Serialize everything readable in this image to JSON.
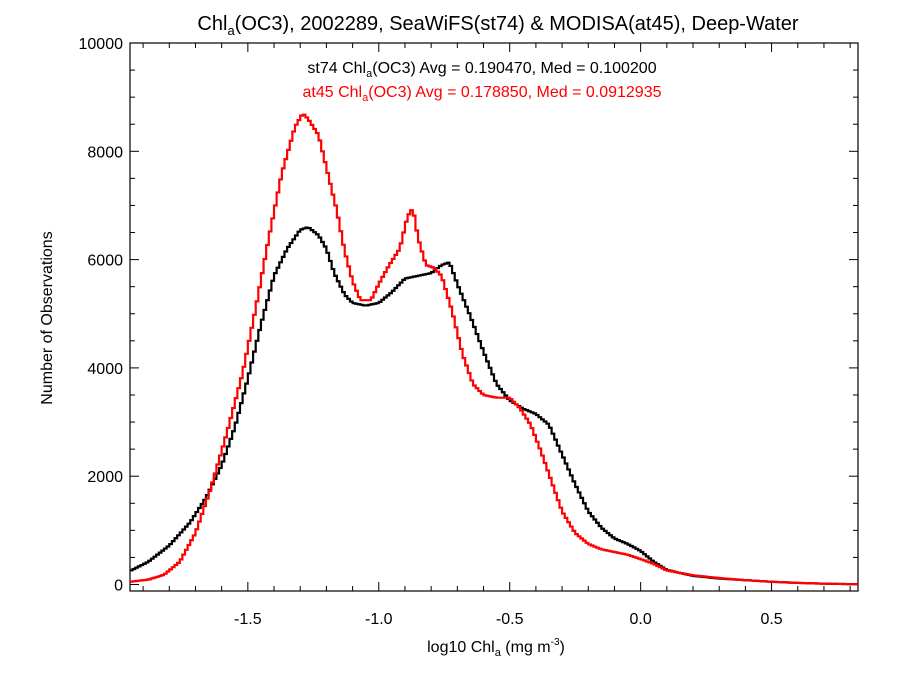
{
  "chart_data": {
    "type": "line",
    "title": {
      "pre": "Chl",
      "sub": "a",
      "post": "(OC3), 2002289, SeaWiFS(st74) & MODISA(at45), Deep-Water"
    },
    "xlabel": {
      "pre": "log10 Chl",
      "sub": "a",
      "mid": " (mg m",
      "sup": "-3",
      "post": ")"
    },
    "ylabel": "Number of Observations",
    "xlim": [
      -1.95,
      0.83
    ],
    "ylim": [
      -120,
      10000
    ],
    "xticks": [
      -1.5,
      -1.0,
      -0.5,
      0.0,
      0.5
    ],
    "xtick_labels": [
      "-1.5",
      "-1.0",
      "-0.5",
      "0.0",
      "0.5"
    ],
    "yticks": [
      0,
      2000,
      4000,
      6000,
      8000,
      10000
    ],
    "ytick_labels": [
      "0",
      "2000",
      "4000",
      "6000",
      "8000",
      "10000"
    ],
    "step_style": "histogram",
    "series": [
      {
        "color": "#000000",
        "annotation": {
          "pre": "st74 Chl",
          "sub": "a",
          "post": "(OC3) Avg = 0.190470, Med = 0.100200"
        },
        "points": [
          [
            -1.95,
            250
          ],
          [
            -1.88,
            420
          ],
          [
            -1.8,
            720
          ],
          [
            -1.72,
            1150
          ],
          [
            -1.66,
            1600
          ],
          [
            -1.6,
            2200
          ],
          [
            -1.55,
            2900
          ],
          [
            -1.5,
            3800
          ],
          [
            -1.45,
            4800
          ],
          [
            -1.4,
            5700
          ],
          [
            -1.35,
            6200
          ],
          [
            -1.3,
            6550
          ],
          [
            -1.27,
            6600
          ],
          [
            -1.23,
            6450
          ],
          [
            -1.2,
            6200
          ],
          [
            -1.17,
            5750
          ],
          [
            -1.13,
            5350
          ],
          [
            -1.1,
            5200
          ],
          [
            -1.05,
            5150
          ],
          [
            -1.0,
            5200
          ],
          [
            -0.95,
            5400
          ],
          [
            -0.9,
            5650
          ],
          [
            -0.85,
            5700
          ],
          [
            -0.8,
            5750
          ],
          [
            -0.76,
            5900
          ],
          [
            -0.73,
            5950
          ],
          [
            -0.7,
            5550
          ],
          [
            -0.65,
            4950
          ],
          [
            -0.6,
            4300
          ],
          [
            -0.55,
            3700
          ],
          [
            -0.5,
            3400
          ],
          [
            -0.45,
            3250
          ],
          [
            -0.4,
            3150
          ],
          [
            -0.35,
            2950
          ],
          [
            -0.3,
            2400
          ],
          [
            -0.25,
            1850
          ],
          [
            -0.2,
            1350
          ],
          [
            -0.15,
            1050
          ],
          [
            -0.1,
            850
          ],
          [
            -0.05,
            750
          ],
          [
            0.0,
            620
          ],
          [
            0.05,
            420
          ],
          [
            0.1,
            270
          ],
          [
            0.2,
            160
          ],
          [
            0.3,
            110
          ],
          [
            0.4,
            80
          ],
          [
            0.5,
            50
          ],
          [
            0.6,
            30
          ],
          [
            0.7,
            15
          ],
          [
            0.83,
            5
          ]
        ]
      },
      {
        "color": "#ff0000",
        "annotation": {
          "pre": "at45 Chl",
          "sub": "a",
          "post": "(OC3) Avg = 0.178850, Med = 0.0912935"
        },
        "points": [
          [
            -1.95,
            50
          ],
          [
            -1.88,
            90
          ],
          [
            -1.82,
            180
          ],
          [
            -1.76,
            420
          ],
          [
            -1.7,
            950
          ],
          [
            -1.64,
            1800
          ],
          [
            -1.58,
            2800
          ],
          [
            -1.52,
            3900
          ],
          [
            -1.47,
            5100
          ],
          [
            -1.42,
            6400
          ],
          [
            -1.37,
            7600
          ],
          [
            -1.32,
            8450
          ],
          [
            -1.29,
            8700
          ],
          [
            -1.27,
            8600
          ],
          [
            -1.23,
            8300
          ],
          [
            -1.2,
            7700
          ],
          [
            -1.16,
            6900
          ],
          [
            -1.13,
            6150
          ],
          [
            -1.1,
            5600
          ],
          [
            -1.07,
            5250
          ],
          [
            -1.03,
            5250
          ],
          [
            -1.0,
            5550
          ],
          [
            -0.96,
            5900
          ],
          [
            -0.92,
            6200
          ],
          [
            -0.89,
            6800
          ],
          [
            -0.87,
            6950
          ],
          [
            -0.85,
            6400
          ],
          [
            -0.82,
            5900
          ],
          [
            -0.79,
            5850
          ],
          [
            -0.76,
            5700
          ],
          [
            -0.72,
            5050
          ],
          [
            -0.68,
            4250
          ],
          [
            -0.64,
            3700
          ],
          [
            -0.6,
            3500
          ],
          [
            -0.55,
            3450
          ],
          [
            -0.5,
            3450
          ],
          [
            -0.46,
            3250
          ],
          [
            -0.42,
            2950
          ],
          [
            -0.38,
            2450
          ],
          [
            -0.34,
            1900
          ],
          [
            -0.3,
            1350
          ],
          [
            -0.25,
            950
          ],
          [
            -0.2,
            750
          ],
          [
            -0.15,
            650
          ],
          [
            -0.1,
            600
          ],
          [
            -0.05,
            550
          ],
          [
            0.0,
            470
          ],
          [
            0.05,
            380
          ],
          [
            0.1,
            260
          ],
          [
            0.2,
            170
          ],
          [
            0.3,
            120
          ],
          [
            0.4,
            80
          ],
          [
            0.5,
            50
          ],
          [
            0.6,
            30
          ],
          [
            0.7,
            15
          ],
          [
            0.83,
            5
          ]
        ]
      }
    ]
  }
}
